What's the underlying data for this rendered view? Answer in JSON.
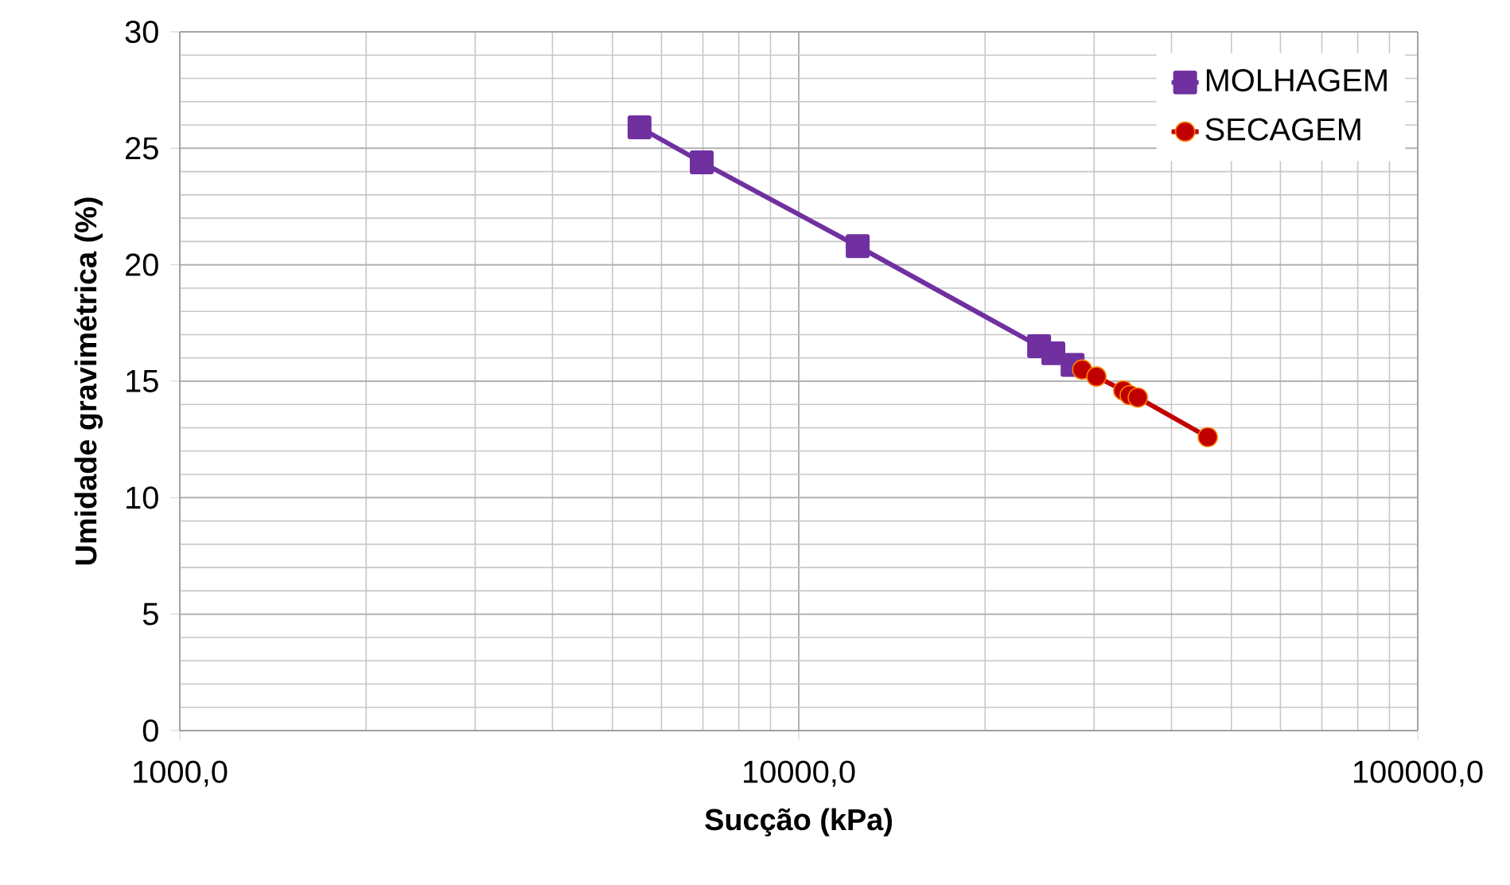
{
  "chart_data": {
    "type": "line",
    "xlabel": "Sucção (kPa)",
    "ylabel": "Umidade gravimétrica (%)",
    "log": "x",
    "grid": true,
    "legend": "top right",
    "xlim": [
      1000,
      100000
    ],
    "xticks": [
      {
        "value": 1000,
        "label": "1000,0"
      },
      {
        "value": 10000,
        "label": "10000,0"
      },
      {
        "value": 100000,
        "label": "100000,0"
      }
    ],
    "ylim": [
      0,
      30
    ],
    "yticks": [
      0,
      5,
      10,
      15,
      20,
      25,
      30
    ],
    "series": [
      {
        "name": "MOLHAGEM",
        "color": "#7030a0",
        "marker": "square",
        "x": [
          5530,
          6970,
          12450,
          24450,
          25780,
          27690
        ],
        "values": [
          25.9,
          24.4,
          20.8,
          16.5,
          16.2,
          15.7
        ]
      },
      {
        "name": "SECAGEM",
        "color": "#c00000",
        "marker": "circle",
        "x": [
          28700,
          30260,
          33440,
          34250,
          35300,
          45790
        ],
        "values": [
          15.5,
          15.2,
          14.6,
          14.4,
          14.3,
          12.6
        ]
      }
    ]
  }
}
